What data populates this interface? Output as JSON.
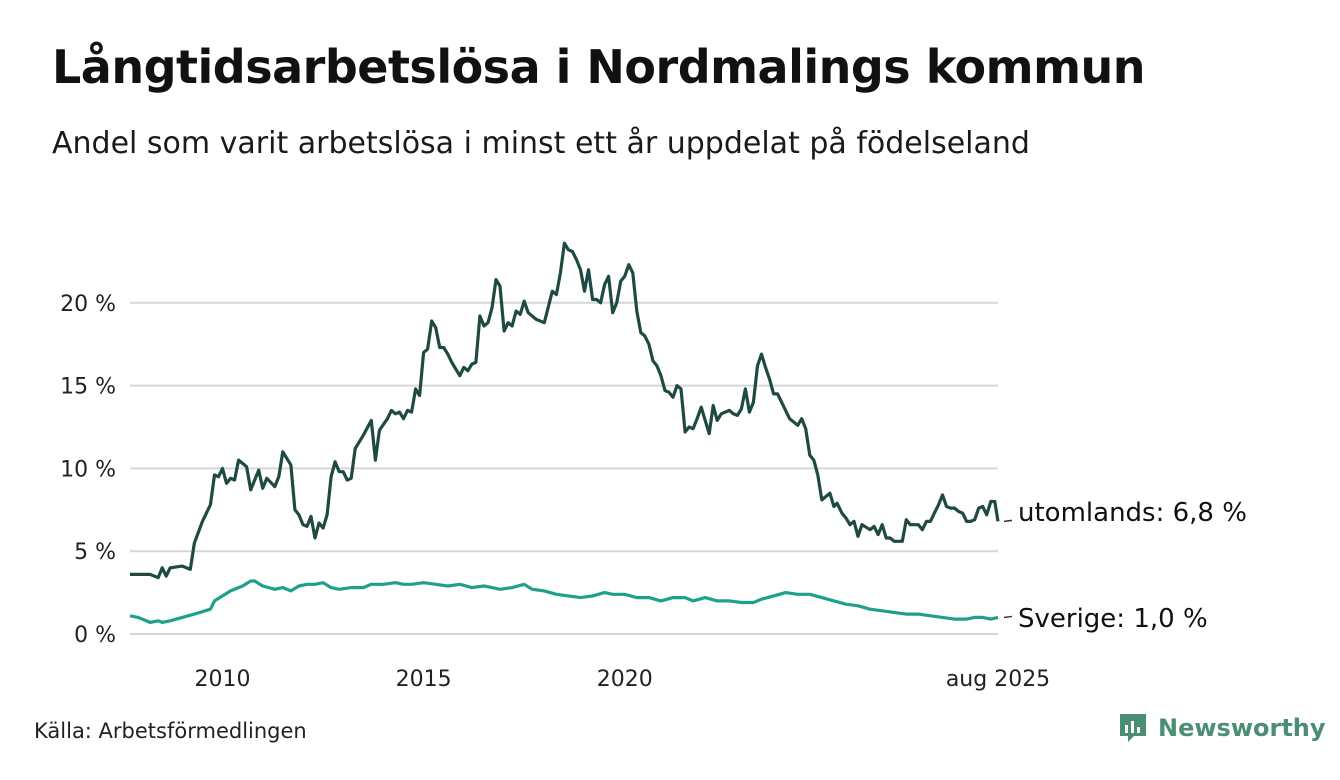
{
  "title": "Långtidsarbetslösa i Nordmalings kommun",
  "subtitle": "Andel som varit arbetslösa i minst ett år uppdelat på födelseland",
  "source": "Källa: Arbetsförmedlingen",
  "brand": {
    "name": "Newsworthy",
    "icon": "newsworthy-logo-icon",
    "color": "#4a8f74"
  },
  "chart_data": {
    "type": "line",
    "x_start": "2008-01",
    "x_end": "2025-08",
    "ylim": [
      0,
      25
    ],
    "y_ticks": [
      0,
      5,
      10,
      15,
      20
    ],
    "y_tick_labels": [
      "0 %",
      "5 %",
      "10 %",
      "15 %",
      "20 %"
    ],
    "x_ticks": [
      2010,
      2015,
      2020,
      2025.58
    ],
    "x_tick_labels": [
      "2010",
      "2015",
      "2020",
      "aug 2025"
    ],
    "grid": true,
    "series": [
      {
        "name": "utomlands",
        "end_label": "utomlands: 6,8 %",
        "color": "#1f4a44",
        "points": [
          [
            2008.0,
            3.6
          ],
          [
            2008.5,
            3.6
          ],
          [
            2008.7,
            3.4
          ],
          [
            2008.8,
            4.0
          ],
          [
            2008.9,
            3.5
          ],
          [
            2009.0,
            4.0
          ],
          [
            2009.3,
            4.1
          ],
          [
            2009.5,
            3.9
          ],
          [
            2009.6,
            5.5
          ],
          [
            2009.8,
            6.8
          ],
          [
            2010.0,
            7.8
          ],
          [
            2010.1,
            9.6
          ],
          [
            2010.2,
            9.5
          ],
          [
            2010.3,
            10.0
          ],
          [
            2010.4,
            9.1
          ],
          [
            2010.5,
            9.4
          ],
          [
            2010.6,
            9.3
          ],
          [
            2010.7,
            10.5
          ],
          [
            2010.9,
            10.1
          ],
          [
            2011.0,
            8.7
          ],
          [
            2011.2,
            9.9
          ],
          [
            2011.3,
            8.8
          ],
          [
            2011.4,
            9.4
          ],
          [
            2011.6,
            8.9
          ],
          [
            2011.7,
            9.5
          ],
          [
            2011.8,
            11.0
          ],
          [
            2012.0,
            10.2
          ],
          [
            2012.1,
            7.5
          ],
          [
            2012.2,
            7.2
          ],
          [
            2012.3,
            6.6
          ],
          [
            2012.4,
            6.5
          ],
          [
            2012.5,
            7.1
          ],
          [
            2012.6,
            5.8
          ],
          [
            2012.7,
            6.7
          ],
          [
            2012.8,
            6.4
          ],
          [
            2012.9,
            7.2
          ],
          [
            2013.0,
            9.5
          ],
          [
            2013.1,
            10.4
          ],
          [
            2013.2,
            9.8
          ],
          [
            2013.3,
            9.8
          ],
          [
            2013.4,
            9.3
          ],
          [
            2013.5,
            9.4
          ],
          [
            2013.6,
            11.2
          ],
          [
            2013.8,
            12.0
          ],
          [
            2014.0,
            12.9
          ],
          [
            2014.1,
            10.5
          ],
          [
            2014.2,
            12.3
          ],
          [
            2014.4,
            13.0
          ],
          [
            2014.5,
            13.5
          ],
          [
            2014.6,
            13.3
          ],
          [
            2014.7,
            13.4
          ],
          [
            2014.8,
            13.0
          ],
          [
            2014.9,
            13.5
          ],
          [
            2015.0,
            13.4
          ],
          [
            2015.1,
            14.8
          ],
          [
            2015.2,
            14.4
          ],
          [
            2015.3,
            17.0
          ],
          [
            2015.4,
            17.2
          ],
          [
            2015.5,
            18.9
          ],
          [
            2015.6,
            18.5
          ],
          [
            2015.7,
            17.3
          ],
          [
            2015.8,
            17.3
          ],
          [
            2015.9,
            16.9
          ],
          [
            2016.0,
            16.4
          ],
          [
            2016.2,
            15.6
          ],
          [
            2016.3,
            16.1
          ],
          [
            2016.4,
            15.9
          ],
          [
            2016.5,
            16.3
          ],
          [
            2016.6,
            16.4
          ],
          [
            2016.7,
            19.2
          ],
          [
            2016.8,
            18.6
          ],
          [
            2016.9,
            18.8
          ],
          [
            2017.0,
            19.7
          ],
          [
            2017.1,
            21.4
          ],
          [
            2017.2,
            21.0
          ],
          [
            2017.3,
            18.3
          ],
          [
            2017.4,
            18.8
          ],
          [
            2017.5,
            18.6
          ],
          [
            2017.6,
            19.5
          ],
          [
            2017.7,
            19.3
          ],
          [
            2017.8,
            20.1
          ],
          [
            2017.9,
            19.4
          ],
          [
            2018.1,
            19.0
          ],
          [
            2018.3,
            18.8
          ],
          [
            2018.5,
            20.7
          ],
          [
            2018.6,
            20.5
          ],
          [
            2018.7,
            21.8
          ],
          [
            2018.8,
            23.6
          ],
          [
            2018.9,
            23.2
          ],
          [
            2019.0,
            23.1
          ],
          [
            2019.1,
            22.6
          ],
          [
            2019.2,
            22.0
          ],
          [
            2019.3,
            20.7
          ],
          [
            2019.4,
            22.0
          ],
          [
            2019.5,
            20.2
          ],
          [
            2019.6,
            20.2
          ],
          [
            2019.7,
            20.0
          ],
          [
            2019.8,
            21.1
          ],
          [
            2019.9,
            21.6
          ],
          [
            2020.0,
            19.4
          ],
          [
            2020.1,
            20.0
          ],
          [
            2020.2,
            21.3
          ],
          [
            2020.3,
            21.6
          ],
          [
            2020.4,
            22.3
          ],
          [
            2020.5,
            21.8
          ],
          [
            2020.6,
            19.5
          ],
          [
            2020.7,
            18.2
          ],
          [
            2020.8,
            18.0
          ],
          [
            2020.9,
            17.5
          ],
          [
            2021.0,
            16.5
          ],
          [
            2021.1,
            16.2
          ],
          [
            2021.2,
            15.6
          ],
          [
            2021.3,
            14.7
          ],
          [
            2021.4,
            14.6
          ],
          [
            2021.5,
            14.3
          ],
          [
            2021.6,
            15.0
          ],
          [
            2021.7,
            14.8
          ],
          [
            2021.8,
            12.2
          ],
          [
            2021.9,
            12.5
          ],
          [
            2022.0,
            12.4
          ],
          [
            2022.1,
            13.0
          ],
          [
            2022.2,
            13.7
          ],
          [
            2022.3,
            12.9
          ],
          [
            2022.4,
            12.1
          ],
          [
            2022.5,
            13.8
          ],
          [
            2022.6,
            12.9
          ],
          [
            2022.7,
            13.3
          ],
          [
            2022.9,
            13.5
          ],
          [
            2023.0,
            13.3
          ],
          [
            2023.1,
            13.2
          ],
          [
            2023.2,
            13.6
          ],
          [
            2023.3,
            14.8
          ],
          [
            2023.4,
            13.4
          ],
          [
            2023.5,
            14.0
          ],
          [
            2023.6,
            16.2
          ],
          [
            2023.7,
            16.9
          ],
          [
            2023.8,
            16.1
          ],
          [
            2023.9,
            15.4
          ],
          [
            2024.0,
            14.5
          ],
          [
            2024.1,
            14.5
          ],
          [
            2024.2,
            14.0
          ],
          [
            2024.3,
            13.5
          ],
          [
            2024.4,
            13.0
          ],
          [
            2024.5,
            12.8
          ],
          [
            2024.6,
            12.6
          ],
          [
            2024.7,
            13.0
          ],
          [
            2024.8,
            12.4
          ],
          [
            2024.9,
            10.8
          ],
          [
            2025.0,
            10.5
          ],
          [
            2025.1,
            9.6
          ],
          [
            2025.2,
            8.1
          ],
          [
            2025.3,
            8.3
          ],
          [
            2025.4,
            8.5
          ],
          [
            2025.5,
            7.7
          ],
          [
            2025.58,
            7.9
          ],
          [
            2025.7,
            7.3
          ],
          [
            2025.8,
            7.0
          ],
          [
            2025.9,
            6.6
          ],
          [
            2026.0,
            6.8
          ],
          [
            2026.1,
            5.9
          ],
          [
            2026.2,
            6.6
          ],
          [
            2026.4,
            6.3
          ],
          [
            2026.5,
            6.5
          ],
          [
            2026.6,
            6.0
          ],
          [
            2026.7,
            6.6
          ],
          [
            2026.8,
            5.8
          ],
          [
            2026.9,
            5.8
          ],
          [
            2027.0,
            5.6
          ],
          [
            2027.2,
            5.6
          ],
          [
            2027.3,
            6.9
          ],
          [
            2027.4,
            6.6
          ],
          [
            2027.6,
            6.6
          ],
          [
            2027.7,
            6.3
          ],
          [
            2027.8,
            6.8
          ],
          [
            2027.9,
            6.8
          ],
          [
            2028.0,
            7.3
          ],
          [
            2028.1,
            7.8
          ],
          [
            2028.2,
            8.4
          ],
          [
            2028.3,
            7.7
          ],
          [
            2028.4,
            7.6
          ],
          [
            2028.5,
            7.6
          ],
          [
            2028.6,
            7.4
          ],
          [
            2028.7,
            7.3
          ],
          [
            2028.8,
            6.8
          ],
          [
            2028.9,
            6.8
          ],
          [
            2029.0,
            6.9
          ],
          [
            2029.1,
            7.6
          ],
          [
            2029.2,
            7.7
          ],
          [
            2029.3,
            7.2
          ],
          [
            2029.4,
            8.0
          ],
          [
            2029.5,
            8.0
          ],
          [
            2029.58,
            6.8
          ]
        ]
      },
      {
        "name": "Sverige",
        "end_label": "Sverige: 1,0 %",
        "color": "#1fa08c",
        "points": [
          [
            2008.0,
            1.1
          ],
          [
            2008.2,
            1.0
          ],
          [
            2008.5,
            0.7
          ],
          [
            2008.7,
            0.8
          ],
          [
            2008.8,
            0.7
          ],
          [
            2009.0,
            0.8
          ],
          [
            2009.3,
            1.0
          ],
          [
            2009.6,
            1.2
          ],
          [
            2010.0,
            1.5
          ],
          [
            2010.1,
            2.0
          ],
          [
            2010.3,
            2.3
          ],
          [
            2010.5,
            2.6
          ],
          [
            2010.8,
            2.9
          ],
          [
            2011.0,
            3.2
          ],
          [
            2011.1,
            3.2
          ],
          [
            2011.3,
            2.9
          ],
          [
            2011.6,
            2.7
          ],
          [
            2011.8,
            2.8
          ],
          [
            2012.0,
            2.6
          ],
          [
            2012.2,
            2.9
          ],
          [
            2012.4,
            3.0
          ],
          [
            2012.6,
            3.0
          ],
          [
            2012.8,
            3.1
          ],
          [
            2013.0,
            2.8
          ],
          [
            2013.2,
            2.7
          ],
          [
            2013.5,
            2.8
          ],
          [
            2013.8,
            2.8
          ],
          [
            2014.0,
            3.0
          ],
          [
            2014.3,
            3.0
          ],
          [
            2014.6,
            3.1
          ],
          [
            2014.8,
            3.0
          ],
          [
            2015.0,
            3.0
          ],
          [
            2015.3,
            3.1
          ],
          [
            2015.6,
            3.0
          ],
          [
            2015.9,
            2.9
          ],
          [
            2016.2,
            3.0
          ],
          [
            2016.5,
            2.8
          ],
          [
            2016.8,
            2.9
          ],
          [
            2017.0,
            2.8
          ],
          [
            2017.2,
            2.7
          ],
          [
            2017.5,
            2.8
          ],
          [
            2017.8,
            3.0
          ],
          [
            2018.0,
            2.7
          ],
          [
            2018.3,
            2.6
          ],
          [
            2018.6,
            2.4
          ],
          [
            2018.9,
            2.3
          ],
          [
            2019.2,
            2.2
          ],
          [
            2019.5,
            2.3
          ],
          [
            2019.8,
            2.5
          ],
          [
            2020.0,
            2.4
          ],
          [
            2020.3,
            2.4
          ],
          [
            2020.6,
            2.2
          ],
          [
            2020.9,
            2.2
          ],
          [
            2021.2,
            2.0
          ],
          [
            2021.5,
            2.2
          ],
          [
            2021.8,
            2.2
          ],
          [
            2022.0,
            2.0
          ],
          [
            2022.3,
            2.2
          ],
          [
            2022.6,
            2.0
          ],
          [
            2022.9,
            2.0
          ],
          [
            2023.2,
            1.9
          ],
          [
            2023.5,
            1.9
          ],
          [
            2023.7,
            2.1
          ],
          [
            2024.0,
            2.3
          ],
          [
            2024.3,
            2.5
          ],
          [
            2024.6,
            2.4
          ],
          [
            2024.9,
            2.4
          ],
          [
            2025.2,
            2.2
          ],
          [
            2025.5,
            2.0
          ],
          [
            2025.8,
            1.8
          ],
          [
            2026.1,
            1.7
          ],
          [
            2026.4,
            1.5
          ],
          [
            2026.7,
            1.4
          ],
          [
            2027.0,
            1.3
          ],
          [
            2027.3,
            1.2
          ],
          [
            2027.6,
            1.2
          ],
          [
            2027.9,
            1.1
          ],
          [
            2028.2,
            1.0
          ],
          [
            2028.5,
            0.9
          ],
          [
            2028.8,
            0.9
          ],
          [
            2029.0,
            1.0
          ],
          [
            2029.2,
            1.0
          ],
          [
            2029.4,
            0.9
          ],
          [
            2029.58,
            1.0
          ]
        ]
      }
    ]
  }
}
